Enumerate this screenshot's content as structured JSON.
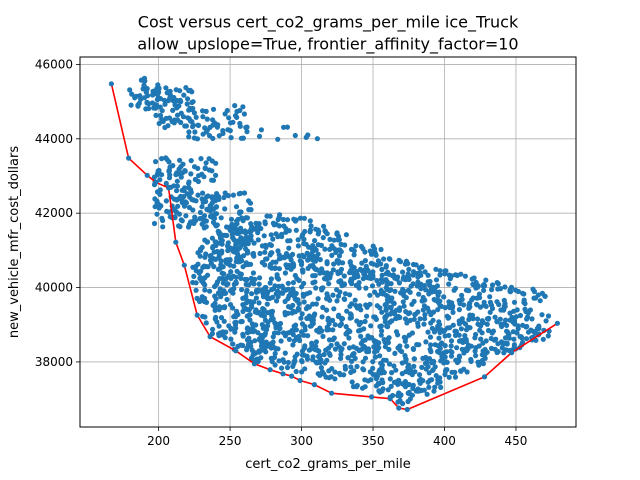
{
  "chart_data": {
    "type": "scatter",
    "title": "Cost versus cert_co2_grams_per_mile ice_Truck",
    "subtitle": "allow_upslope=True, frontier_affinity_factor=10",
    "xlabel": "cert_co2_grams_per_mile",
    "ylabel": "new_vehicle_mfr_cost_dollars",
    "xlim": [
      145,
      492
    ],
    "ylim": [
      36250,
      46200
    ],
    "xticks": [
      200,
      250,
      300,
      350,
      400,
      450
    ],
    "yticks": [
      38000,
      40000,
      42000,
      44000,
      46000
    ],
    "grid": true,
    "colors": {
      "points": "#1f77b4",
      "frontier": "#ff0000"
    },
    "frontier": {
      "x": [
        167,
        179,
        192,
        198,
        207,
        212,
        218,
        227,
        236,
        254,
        267,
        278,
        287,
        293,
        299,
        309,
        321,
        349,
        362,
        368,
        374,
        428,
        447,
        479
      ],
      "y": [
        45480,
        43480,
        43020,
        42830,
        42680,
        41220,
        40600,
        39260,
        38680,
        38300,
        37950,
        37790,
        37680,
        37620,
        37500,
        37390,
        37160,
        37060,
        37010,
        36760,
        36720,
        37600,
        38250,
        39040
      ]
    },
    "scatter_clusters": [
      {
        "kind": "box",
        "x": [
          178,
          200
        ],
        "y": [
          44800,
          45650
        ],
        "n": 35
      },
      {
        "kind": "box",
        "x": [
          195,
          225
        ],
        "y": [
          44300,
          45400
        ],
        "n": 70
      },
      {
        "kind": "box",
        "x": [
          220,
          262
        ],
        "y": [
          44000,
          44900
        ],
        "n": 55
      },
      {
        "kind": "box",
        "x": [
          270,
          314
        ],
        "y": [
          43950,
          44350
        ],
        "n": 9
      },
      {
        "kind": "box",
        "x": [
          197,
          240
        ],
        "y": [
          41600,
          43500
        ],
        "n": 160
      },
      {
        "kind": "box",
        "x": [
          230,
          265
        ],
        "y": [
          40600,
          42600
        ],
        "n": 110
      },
      {
        "kind": "poly",
        "xy": [
          [
            232,
            38900
          ],
          [
            262,
            38050
          ],
          [
            300,
            37700
          ],
          [
            345,
            37250
          ],
          [
            372,
            36850
          ],
          [
            390,
            37150
          ],
          [
            430,
            38000
          ],
          [
            475,
            38700
          ],
          [
            470,
            39900
          ],
          [
            425,
            40300
          ],
          [
            378,
            40650
          ],
          [
            322,
            41600
          ],
          [
            292,
            42000
          ],
          [
            258,
            41900
          ],
          [
            230,
            41200
          ],
          [
            221,
            40300
          ]
        ],
        "n": 1600
      }
    ]
  }
}
